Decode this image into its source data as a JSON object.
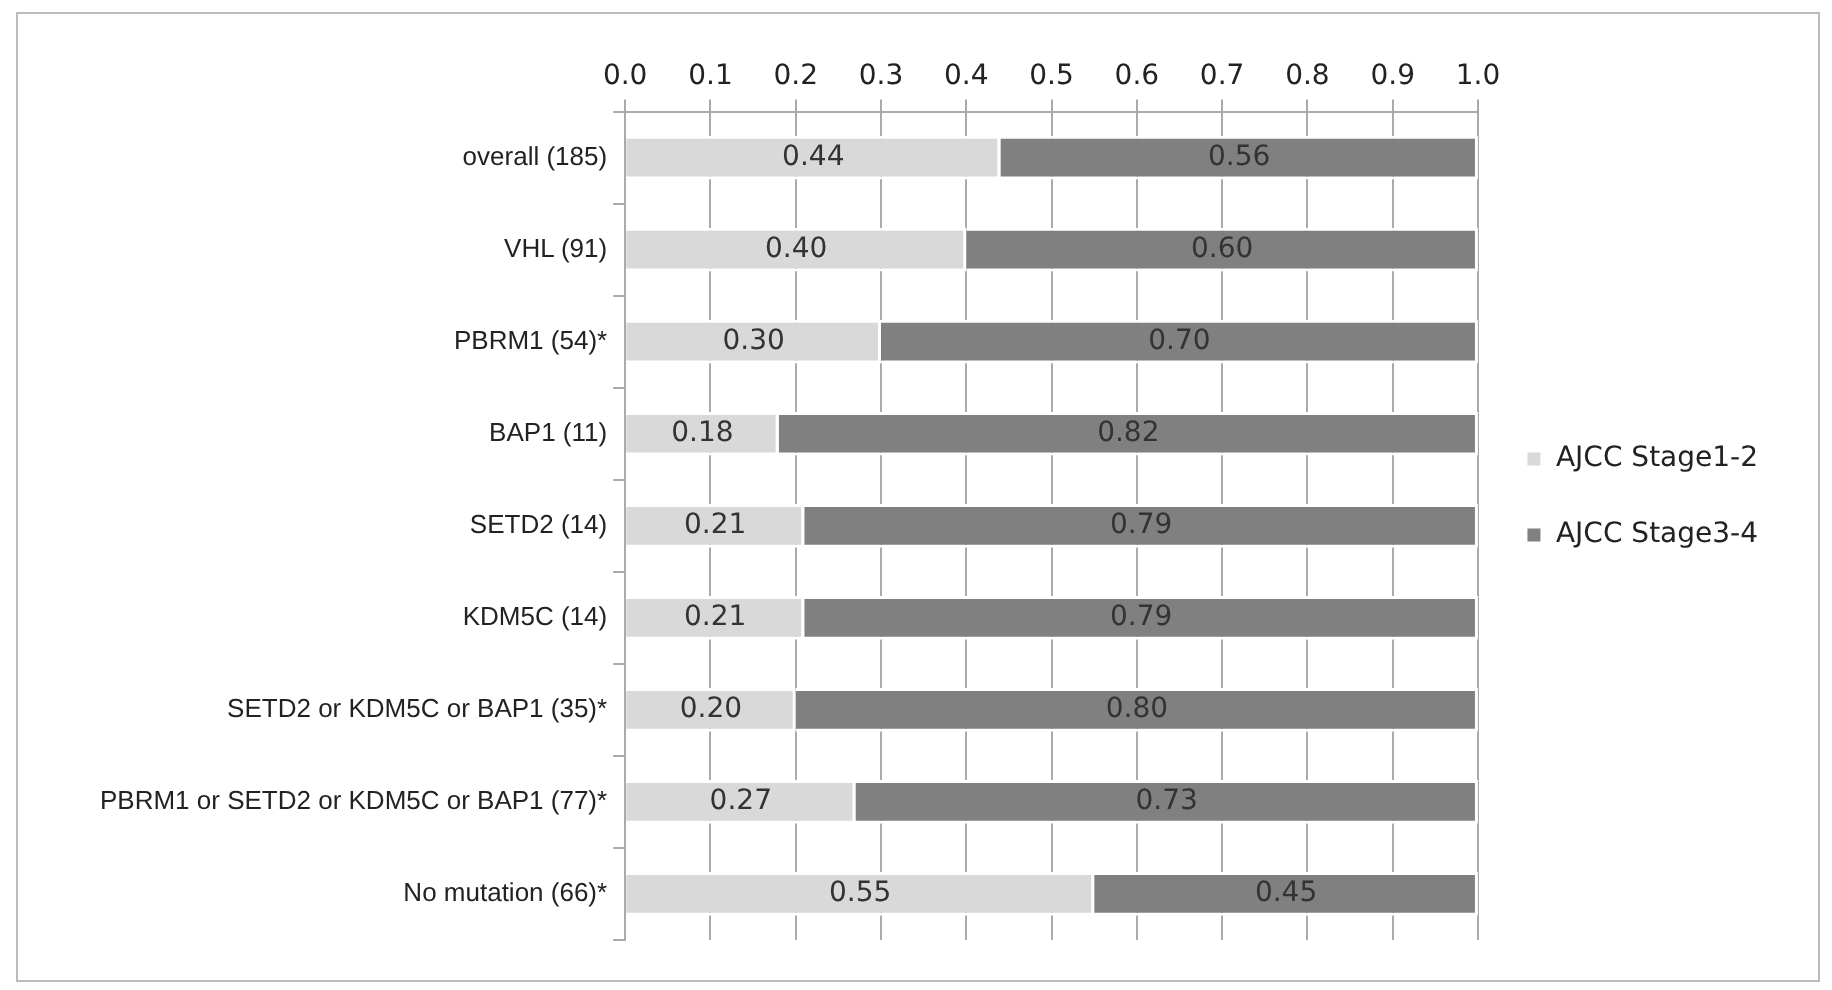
{
  "chart_data": {
    "type": "bar",
    "orientation": "horizontal",
    "stacked": true,
    "categories": [
      "overall (185)",
      "VHL (91)",
      "PBRM1 (54)*",
      "BAP1 (11)",
      "SETD2 (14)",
      "KDM5C (14)",
      "SETD2 or KDM5C or BAP1 (35)*",
      "PBRM1 or SETD2 or KDM5C or BAP1 (77)*",
      "No mutation (66)*"
    ],
    "series": [
      {
        "name": "AJCC Stage1-2",
        "color": "#d9d9d9",
        "values": [
          0.44,
          0.4,
          0.3,
          0.18,
          0.21,
          0.21,
          0.2,
          0.27,
          0.55
        ],
        "value_labels": [
          "0.44",
          "0.40",
          "0.30",
          "0.18",
          "0.21",
          "0.21",
          "0.20",
          "0.27",
          "0.55"
        ]
      },
      {
        "name": "AJCC Stage3-4",
        "color": "#808080",
        "values": [
          0.56,
          0.6,
          0.7,
          0.82,
          0.79,
          0.79,
          0.8,
          0.73,
          0.45
        ],
        "value_labels": [
          "0.56",
          "0.60",
          "0.70",
          "0.82",
          "0.79",
          "0.79",
          "0.80",
          "0.73",
          "0.45"
        ]
      }
    ],
    "xlim": [
      0,
      1
    ],
    "xticks": [
      {
        "value": 0,
        "label": "0.0"
      },
      {
        "value": 0.1,
        "label": "0.1"
      },
      {
        "value": 0.2,
        "label": "0.2"
      },
      {
        "value": 0.3,
        "label": "0.3"
      },
      {
        "value": 0.4,
        "label": "0.4"
      },
      {
        "value": 0.5,
        "label": "0.5"
      },
      {
        "value": 0.6,
        "label": "0.6"
      },
      {
        "value": 0.7,
        "label": "0.7"
      },
      {
        "value": 0.8,
        "label": "0.8"
      },
      {
        "value": 0.9,
        "label": "0.9"
      },
      {
        "value": 1,
        "label": "1.0"
      }
    ],
    "grid": "x",
    "legend": "right"
  }
}
